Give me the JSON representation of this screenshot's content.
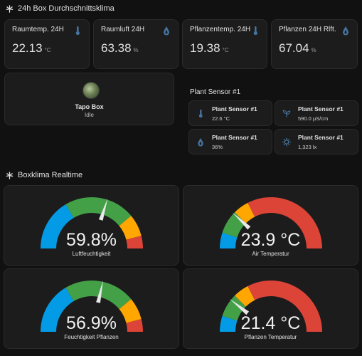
{
  "section1": {
    "title": "24h Box Durchschnittsklima"
  },
  "stats": [
    {
      "label": "Raumtemp. 24H",
      "value": "22.13",
      "unit": "°C",
      "icon": "thermometer-icon"
    },
    {
      "label": "Raumluft 24H",
      "value": "63.38",
      "unit": "%",
      "icon": "water-drop-icon"
    },
    {
      "label": "Pflanzentemp. 24H",
      "value": "19.38",
      "unit": "°C",
      "icon": "thermometer-icon"
    },
    {
      "label": "Pflanzen 24H Rlft.",
      "value": "67.04",
      "unit": "%",
      "icon": "water-drop-icon"
    }
  ],
  "tapo": {
    "name": "Tapo Box",
    "state": "Idle"
  },
  "plant": {
    "heading": "Plant Sensor #1",
    "sensors": [
      {
        "name": "Plant Sensor #1",
        "value": "22.6 °C",
        "icon": "thermometer-icon"
      },
      {
        "name": "Plant Sensor #1",
        "value": "590.0 μS/cm",
        "icon": "seedling-icon"
      },
      {
        "name": "Plant Sensor #1",
        "value": "36%",
        "icon": "water-drop-icon"
      },
      {
        "name": "Plant Sensor #1",
        "value": "1,323 lx",
        "icon": "sun-icon"
      }
    ]
  },
  "section2": {
    "title": "Boxklima Realtime"
  },
  "gauges": [
    {
      "value": "59.8%",
      "name": "Luftfeuchtigkeit",
      "fraction": 0.598,
      "segments": [
        0.33,
        0.78,
        0.92
      ],
      "colors": [
        "#039be5",
        "#43a047",
        "#ffa600",
        "#db4437"
      ]
    },
    {
      "value": "23.9 °C",
      "name": "Air Temperatur",
      "fraction": 0.239,
      "segments": [
        0.1,
        0.25,
        0.35
      ],
      "colors": [
        "#039be5",
        "#43a047",
        "#ffa600",
        "#db4437"
      ]
    },
    {
      "value": "56.9%",
      "name": "Feuchtigkeit Pflanzen",
      "fraction": 0.569,
      "segments": [
        0.33,
        0.78,
        0.92
      ],
      "colors": [
        "#039be5",
        "#43a047",
        "#ffa600",
        "#db4437"
      ]
    },
    {
      "value": "21.4 °C",
      "name": "Pflanzen Temperatur",
      "fraction": 0.214,
      "segments": [
        0.1,
        0.25,
        0.35
      ],
      "colors": [
        "#039be5",
        "#43a047",
        "#ffa600",
        "#db4437"
      ]
    }
  ]
}
